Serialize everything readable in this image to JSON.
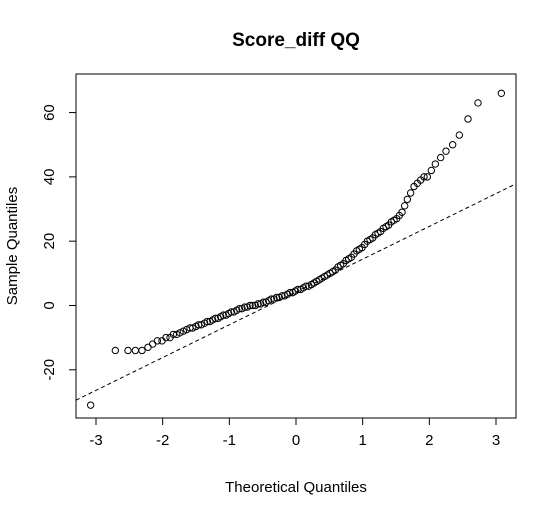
{
  "chart_data": {
    "type": "scatter",
    "title": "Score_diff QQ",
    "xlabel": "Theoretical Quantiles",
    "ylabel": "Sample Quantiles",
    "xlim": [
      -3.3,
      3.3
    ],
    "ylim": [
      -35,
      72
    ],
    "xticks": [
      -3,
      -2,
      -1,
      0,
      1,
      2,
      3
    ],
    "yticks": [
      -20,
      0,
      20,
      40,
      60
    ],
    "grid": false,
    "reference_line": {
      "style": "dashed",
      "slope": 10.2,
      "intercept": 4.2
    },
    "points": {
      "x": [
        -3.08,
        -2.71,
        -2.52,
        -2.41,
        -2.31,
        -2.22,
        -2.15,
        -2.08,
        -2.01,
        -1.95,
        -1.89,
        -1.84,
        -1.79,
        -1.74,
        -1.69,
        -1.64,
        -1.59,
        -1.55,
        -1.5,
        -1.46,
        -1.42,
        -1.37,
        -1.33,
        -1.29,
        -1.25,
        -1.21,
        -1.17,
        -1.13,
        -1.09,
        -1.05,
        -1.01,
        -0.97,
        -0.93,
        -0.89,
        -0.85,
        -0.81,
        -0.77,
        -0.73,
        -0.69,
        -0.65,
        -0.61,
        -0.57,
        -0.53,
        -0.49,
        -0.45,
        -0.41,
        -0.37,
        -0.33,
        -0.29,
        -0.25,
        -0.21,
        -0.17,
        -0.13,
        -0.09,
        -0.05,
        -0.01,
        0.03,
        0.07,
        0.11,
        0.15,
        0.19,
        0.23,
        0.27,
        0.31,
        0.35,
        0.39,
        0.43,
        0.47,
        0.51,
        0.55,
        0.59,
        0.63,
        0.67,
        0.71,
        0.75,
        0.79,
        0.83,
        0.87,
        0.91,
        0.95,
        0.99,
        1.03,
        1.07,
        1.11,
        1.15,
        1.19,
        1.23,
        1.27,
        1.31,
        1.35,
        1.39,
        1.43,
        1.47,
        1.51,
        1.55,
        1.59,
        1.63,
        1.67,
        1.72,
        1.77,
        1.82,
        1.87,
        1.92,
        1.97,
        2.03,
        2.09,
        2.17,
        2.25,
        2.35,
        2.45,
        2.58,
        2.73,
        3.08
      ],
      "y": [
        -31,
        -14,
        -14,
        -14,
        -14,
        -13,
        -12,
        -11,
        -11,
        -10,
        -10,
        -9,
        -9,
        -8.5,
        -8,
        -7.5,
        -7,
        -7,
        -6.5,
        -6,
        -6,
        -5.5,
        -5,
        -5,
        -4.5,
        -4,
        -4,
        -3.5,
        -3,
        -3,
        -2.5,
        -2,
        -2,
        -1.5,
        -1,
        -1,
        -0.5,
        -0.5,
        0,
        0,
        0,
        0.5,
        0.5,
        1,
        1,
        1.5,
        2,
        2,
        2.5,
        2.5,
        3,
        3,
        3.5,
        4,
        4,
        4.5,
        5,
        5,
        5.5,
        6,
        6,
        6.5,
        7,
        7.5,
        8,
        8.5,
        9,
        9.5,
        10,
        10.5,
        11,
        12,
        12.5,
        13,
        14,
        14.5,
        15,
        16,
        17,
        17.5,
        18,
        19,
        20,
        20.5,
        21,
        22,
        22.5,
        23,
        24,
        24.5,
        25,
        26,
        26.5,
        27,
        28,
        29,
        31,
        33,
        35,
        37,
        38,
        39,
        40,
        40,
        42,
        44,
        46,
        48,
        50,
        53,
        58,
        63,
        66
      ]
    }
  }
}
